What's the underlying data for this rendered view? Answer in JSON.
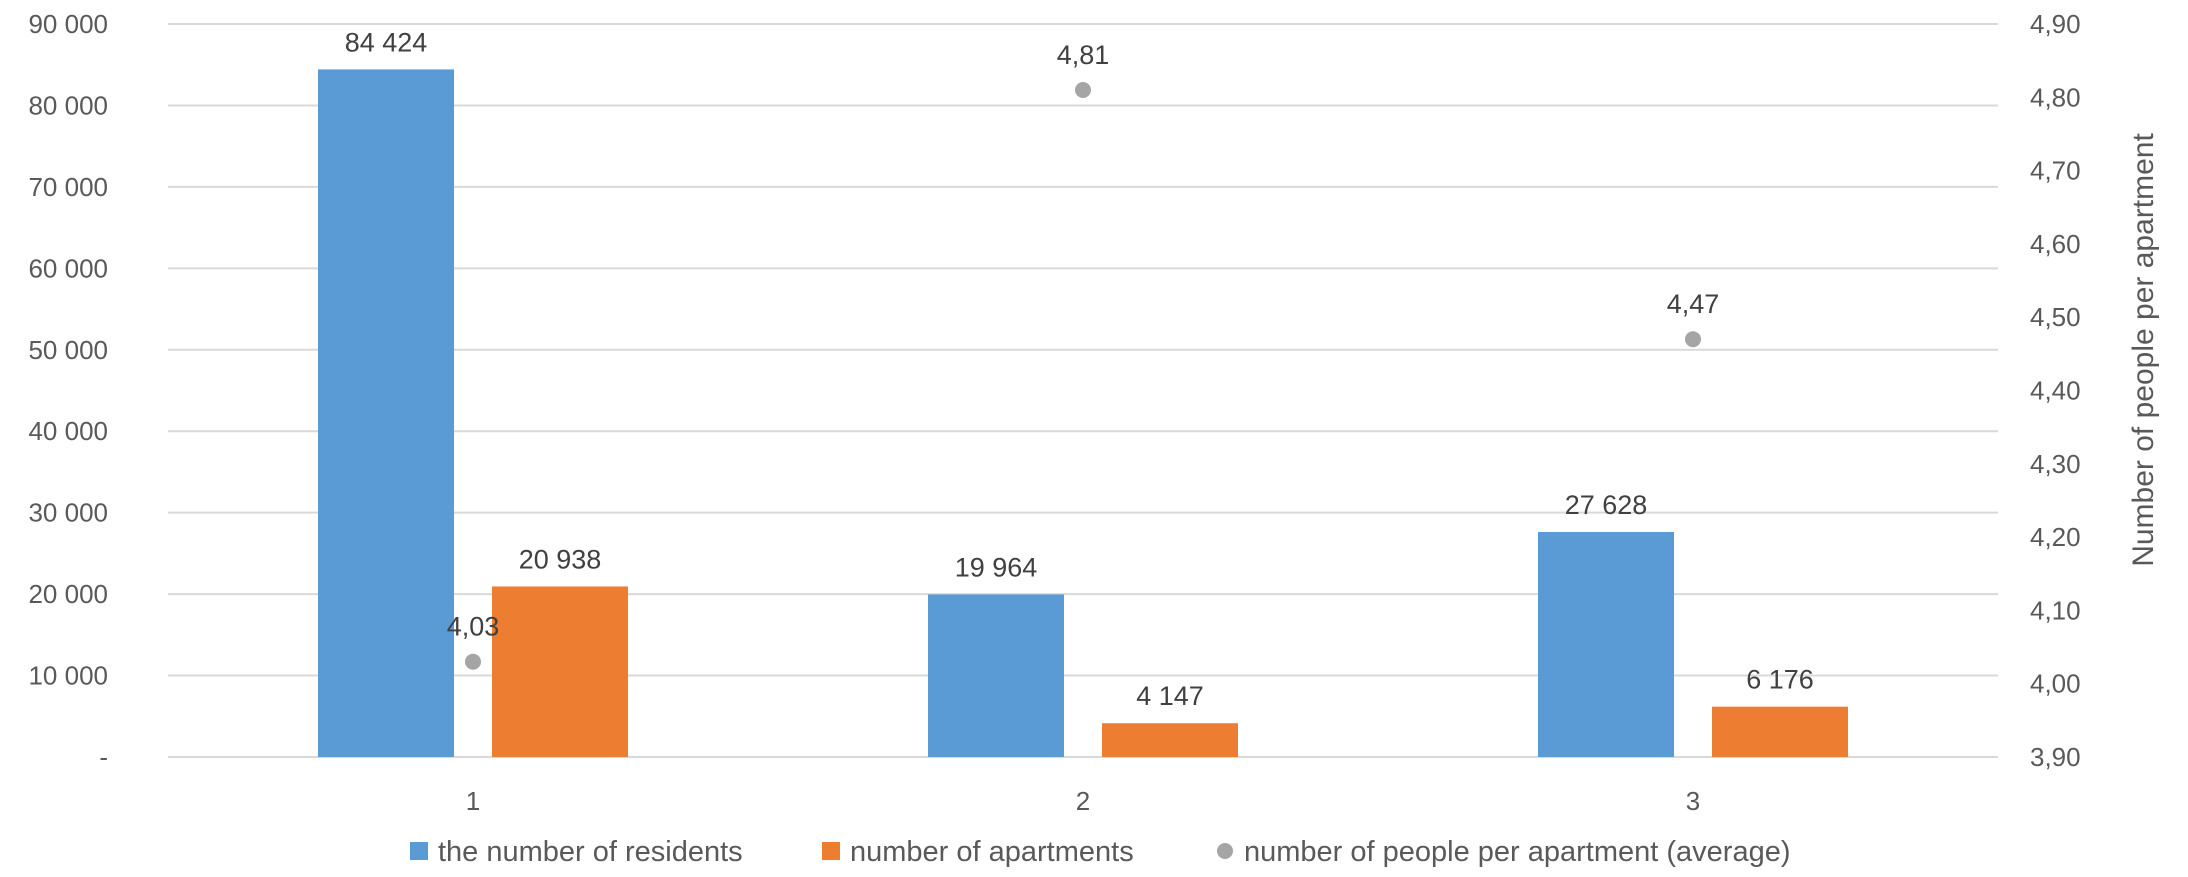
{
  "chart_data": {
    "type": "bar",
    "categories": [
      "1",
      "2",
      "3"
    ],
    "series": [
      {
        "name": "the number of residents",
        "values": [
          84424,
          19964,
          27628
        ],
        "labels": [
          "84 424",
          "19 964",
          "27 628"
        ],
        "color": "#5B9BD5",
        "axis": "left",
        "kind": "bar"
      },
      {
        "name": "number of apartments",
        "values": [
          20938,
          4147,
          6176
        ],
        "labels": [
          "20 938",
          "4 147",
          "6 176"
        ],
        "color": "#ED7D31",
        "axis": "left",
        "kind": "bar"
      },
      {
        "name": "number of people per apartment (average)",
        "values": [
          4.03,
          4.81,
          4.47
        ],
        "labels": [
          "4,03",
          "4,81",
          "4,47"
        ],
        "color": "#A5A5A5",
        "axis": "right",
        "kind": "scatter"
      }
    ],
    "y_left": {
      "lim": [
        0,
        90000
      ],
      "ticks": [
        0,
        10000,
        20000,
        30000,
        40000,
        50000,
        60000,
        70000,
        80000,
        90000
      ],
      "tick_labels": [
        "-",
        "10 000",
        "20 000",
        "30 000",
        "40 000",
        "50 000",
        "60 000",
        "70 000",
        "80 000",
        "90 000"
      ],
      "label": ""
    },
    "y_right": {
      "lim": [
        3.9,
        4.9
      ],
      "ticks": [
        3.9,
        4.0,
        4.1,
        4.2,
        4.3,
        4.4,
        4.5,
        4.6,
        4.7,
        4.8,
        4.9
      ],
      "tick_labels": [
        "3,90",
        "4,00",
        "4,10",
        "4,20",
        "4,30",
        "4,40",
        "4,50",
        "4,60",
        "4,70",
        "4,80",
        "4,90"
      ],
      "label": "Number of people per apartment"
    },
    "xlabel": "",
    "grid": true,
    "legend_position": "bottom"
  },
  "colors": {
    "grid": "#D9D9D9",
    "axis_text": "#595959",
    "label_text": "#404040"
  }
}
